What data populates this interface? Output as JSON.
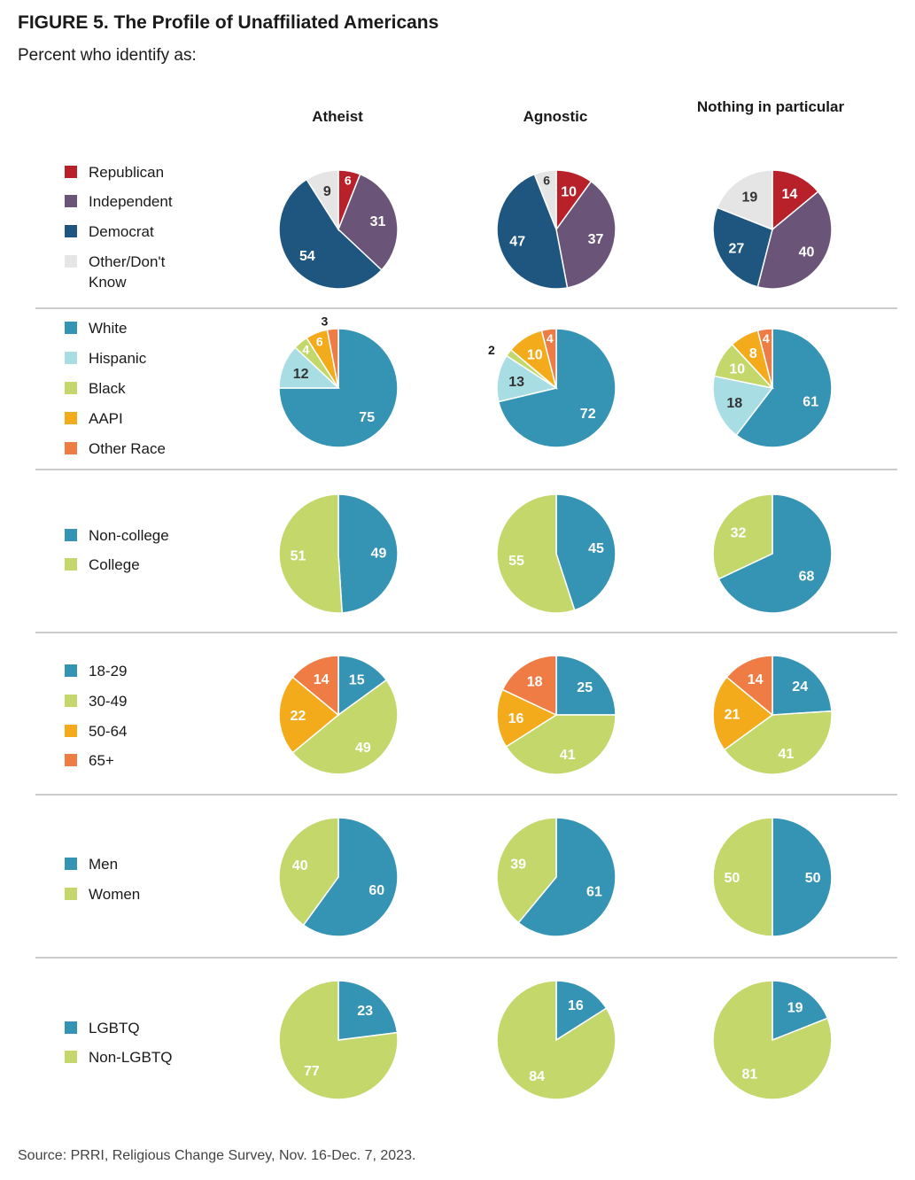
{
  "title": "FIGURE 5. The Profile of Unaffiliated Americans",
  "subtitle": "Percent who identify as:",
  "source": "Source: PRRI, Religious Change Survey, Nov. 16-Dec. 7, 2023.",
  "columns": [
    "Atheist",
    "Agnostic",
    "Nothing in particular"
  ],
  "colors": {
    "republican": "#b8202a",
    "independent": "#6a5578",
    "democrat": "#1e5680",
    "other_gray": "#e5e5e5",
    "teal": "#3593b4",
    "light_teal": "#a9dde4",
    "green": "#c3d76b",
    "orange_yellow": "#f3ab1c",
    "orange": "#f07c45",
    "separator": "#cccccc"
  },
  "chart_data": [
    {
      "type": "pie",
      "group": "party",
      "categories": [
        "Republican",
        "Independent",
        "Democrat",
        "Other/Don't Know"
      ],
      "series": [
        {
          "name": "Atheist",
          "values": [
            6,
            31,
            54,
            9
          ]
        },
        {
          "name": "Agnostic",
          "values": [
            10,
            37,
            47,
            6
          ]
        },
        {
          "name": "Nothing in particular",
          "values": [
            14,
            40,
            27,
            19
          ]
        }
      ]
    },
    {
      "type": "pie",
      "group": "race",
      "categories": [
        "White",
        "Hispanic",
        "Black",
        "AAPI",
        "Other Race"
      ],
      "series": [
        {
          "name": "Atheist",
          "values": [
            75,
            12,
            4,
            6,
            3
          ]
        },
        {
          "name": "Agnostic",
          "values": [
            72,
            13,
            2,
            10,
            4
          ]
        },
        {
          "name": "Nothing in particular",
          "values": [
            61,
            18,
            10,
            8,
            4
          ]
        }
      ]
    },
    {
      "type": "pie",
      "group": "education",
      "categories": [
        "Non-college",
        "College"
      ],
      "series": [
        {
          "name": "Atheist",
          "values": [
            49,
            51
          ]
        },
        {
          "name": "Agnostic",
          "values": [
            45,
            55
          ]
        },
        {
          "name": "Nothing in particular",
          "values": [
            68,
            32
          ]
        }
      ]
    },
    {
      "type": "pie",
      "group": "age",
      "categories": [
        "18-29",
        "30-49",
        "50-64",
        "65+"
      ],
      "series": [
        {
          "name": "Atheist",
          "values": [
            15,
            49,
            22,
            14
          ]
        },
        {
          "name": "Agnostic",
          "values": [
            25,
            41,
            16,
            18
          ]
        },
        {
          "name": "Nothing in particular",
          "values": [
            24,
            41,
            21,
            14
          ]
        }
      ]
    },
    {
      "type": "pie",
      "group": "gender",
      "categories": [
        "Men",
        "Women"
      ],
      "series": [
        {
          "name": "Atheist",
          "values": [
            60,
            40
          ]
        },
        {
          "name": "Agnostic",
          "values": [
            61,
            39
          ]
        },
        {
          "name": "Nothing in particular",
          "values": [
            50,
            50
          ]
        }
      ]
    },
    {
      "type": "pie",
      "group": "lgbtq",
      "categories": [
        "LGBTQ",
        "Non-LGBTQ"
      ],
      "series": [
        {
          "name": "Atheist",
          "values": [
            23,
            77
          ]
        },
        {
          "name": "Agnostic",
          "values": [
            16,
            84
          ]
        },
        {
          "name": "Nothing in particular",
          "values": [
            19,
            81
          ]
        }
      ]
    }
  ]
}
